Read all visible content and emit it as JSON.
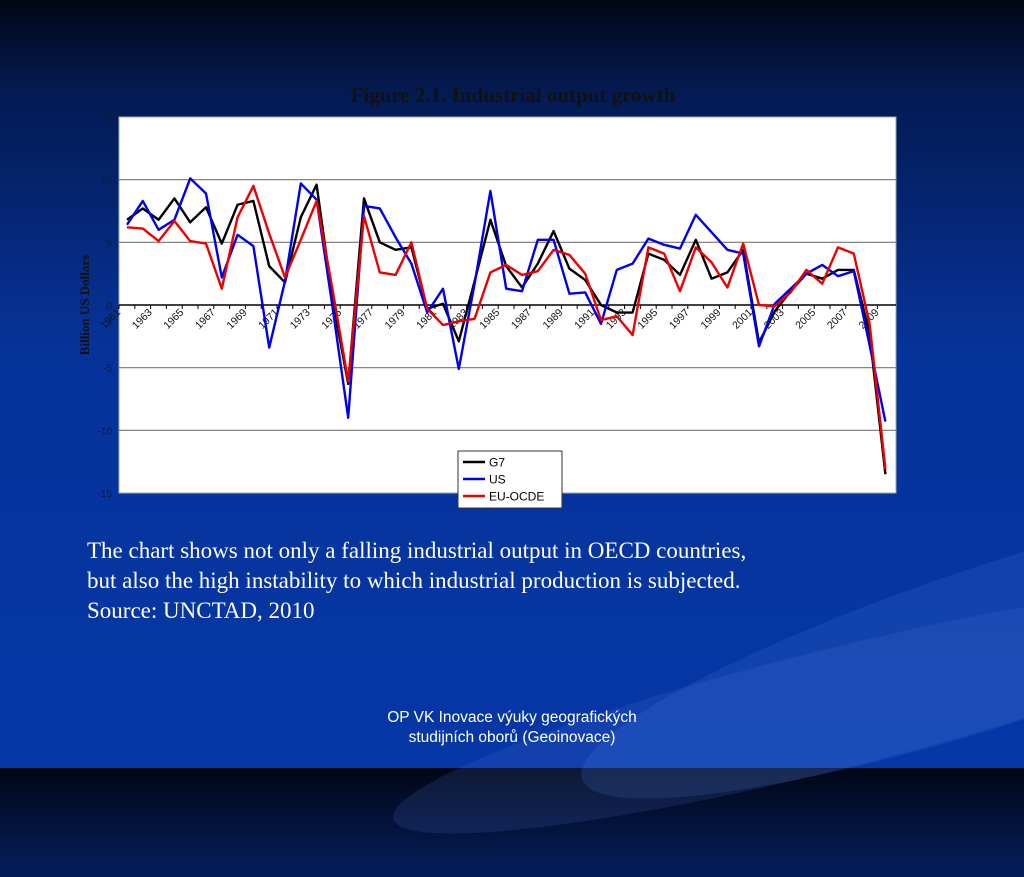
{
  "slide": {
    "caption_lines": [
      "The chart shows not only a falling industrial output in OECD countries,",
      "but also the high instability to which industrial production is subjected.",
      "Source: UNCTAD, 2010"
    ],
    "footer_lines": [
      "OP VK Inovace výuky geografických",
      "studijních oborů (Geoinovace)"
    ]
  },
  "chart_data": {
    "type": "line",
    "title": "Figure 2.1. Industrial output growth",
    "xlabel": "",
    "ylabel": "Billion US Dollars",
    "ylim": [
      -15,
      15
    ],
    "yticks": [
      "15",
      "10",
      "5",
      "0",
      "-5",
      "-10",
      "-15"
    ],
    "grid": true,
    "legend_position": "bottom-center",
    "x": [
      1961,
      1962,
      1963,
      1964,
      1965,
      1966,
      1967,
      1968,
      1969,
      1970,
      1971,
      1972,
      1973,
      1974,
      1975,
      1976,
      1977,
      1978,
      1979,
      1980,
      1981,
      1982,
      1983,
      1984,
      1985,
      1986,
      1987,
      1988,
      1989,
      1990,
      1991,
      1992,
      1993,
      1994,
      1995,
      1996,
      1997,
      1998,
      1999,
      2000,
      2001,
      2002,
      2003,
      2004,
      2005,
      2006,
      2007,
      2008,
      2009
    ],
    "xtick_labels": [
      "1961",
      "1963",
      "1965",
      "1967",
      "1969",
      "1971",
      "1973",
      "1975",
      "1977",
      "1979",
      "1981",
      "1983",
      "1985",
      "1987",
      "1989",
      "1991",
      "1993",
      "1995",
      "1997",
      "1999",
      "2001",
      "2003",
      "2005",
      "2007",
      "2009"
    ],
    "series": [
      {
        "name": "G7",
        "color": "#000000",
        "values": [
          6.8,
          7.7,
          6.8,
          8.5,
          6.6,
          7.8,
          4.9,
          8.0,
          8.3,
          3.1,
          1.8,
          7.0,
          9.6,
          0.5,
          -6.3,
          8.5,
          5.0,
          4.4,
          4.6,
          -0.3,
          0.1,
          -2.9,
          1.9,
          6.8,
          3.1,
          1.4,
          3.3,
          5.9,
          2.9,
          2.0,
          0.0,
          -0.6,
          -0.6,
          4.1,
          3.6,
          2.4,
          5.2,
          2.1,
          2.6,
          4.4,
          -3.0,
          -0.5,
          1.1,
          2.5,
          2.1,
          2.8,
          2.8,
          -2.3,
          -13.5
        ]
      },
      {
        "name": "US",
        "color": "#0000ee",
        "values": [
          6.4,
          8.3,
          6.0,
          6.8,
          10.1,
          8.9,
          2.2,
          5.6,
          4.7,
          -3.4,
          1.9,
          9.7,
          8.4,
          -0.1,
          -9.0,
          7.9,
          7.7,
          5.4,
          3.3,
          -0.6,
          1.3,
          -5.1,
          1.7,
          9.1,
          1.3,
          1.1,
          5.2,
          5.2,
          0.9,
          1.0,
          -1.5,
          2.8,
          3.3,
          5.3,
          4.8,
          4.5,
          7.2,
          5.8,
          4.4,
          4.1,
          -3.3,
          0.1,
          1.3,
          2.5,
          3.2,
          2.3,
          2.7,
          -3.2,
          -9.3
        ]
      },
      {
        "name": "EU-OCDE",
        "color": "#ee0000",
        "values": [
          6.2,
          6.1,
          5.1,
          6.7,
          5.1,
          4.9,
          1.3,
          7.0,
          9.5,
          5.7,
          2.2,
          5.2,
          8.3,
          1.3,
          -6.1,
          7.1,
          2.6,
          2.4,
          5.0,
          -0.3,
          -1.6,
          -1.3,
          -1.1,
          2.6,
          3.2,
          2.4,
          2.7,
          4.4,
          4.0,
          2.5,
          -1.2,
          -0.9,
          -2.4,
          4.6,
          4.1,
          1.1,
          4.6,
          3.4,
          1.4,
          4.9,
          0.0,
          -0.1,
          1.0,
          2.8,
          1.7,
          4.6,
          4.1,
          -1.5,
          -13.1
        ]
      }
    ]
  }
}
